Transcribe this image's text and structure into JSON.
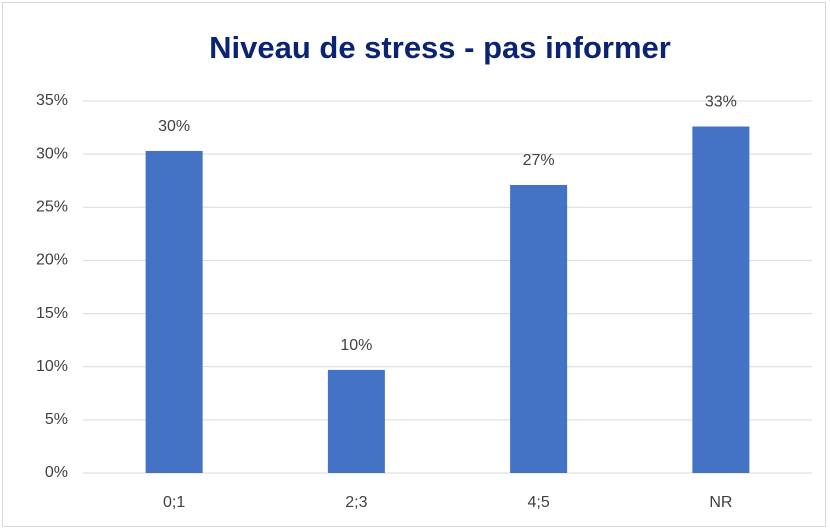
{
  "chart_data": {
    "type": "bar",
    "title": "Niveau de stress - pas informer",
    "categories": [
      "0;1",
      "2;3",
      "4;5",
      "NR"
    ],
    "values": [
      30.3,
      9.7,
      27.1,
      32.6
    ],
    "value_labels": [
      "30%",
      "10%",
      "27%",
      "33%"
    ],
    "color": "#4472c4",
    "ylim": [
      0,
      35
    ],
    "yticks": [
      {
        "value": 0,
        "label": "0%"
      },
      {
        "value": 5,
        "label": "5%"
      },
      {
        "value": 10,
        "label": "10%"
      },
      {
        "value": 15,
        "label": "15%"
      },
      {
        "value": 20,
        "label": "20%"
      },
      {
        "value": 25,
        "label": "25%"
      },
      {
        "value": 30,
        "label": "30%"
      },
      {
        "value": 35,
        "label": "35%"
      }
    ],
    "grid": true
  }
}
